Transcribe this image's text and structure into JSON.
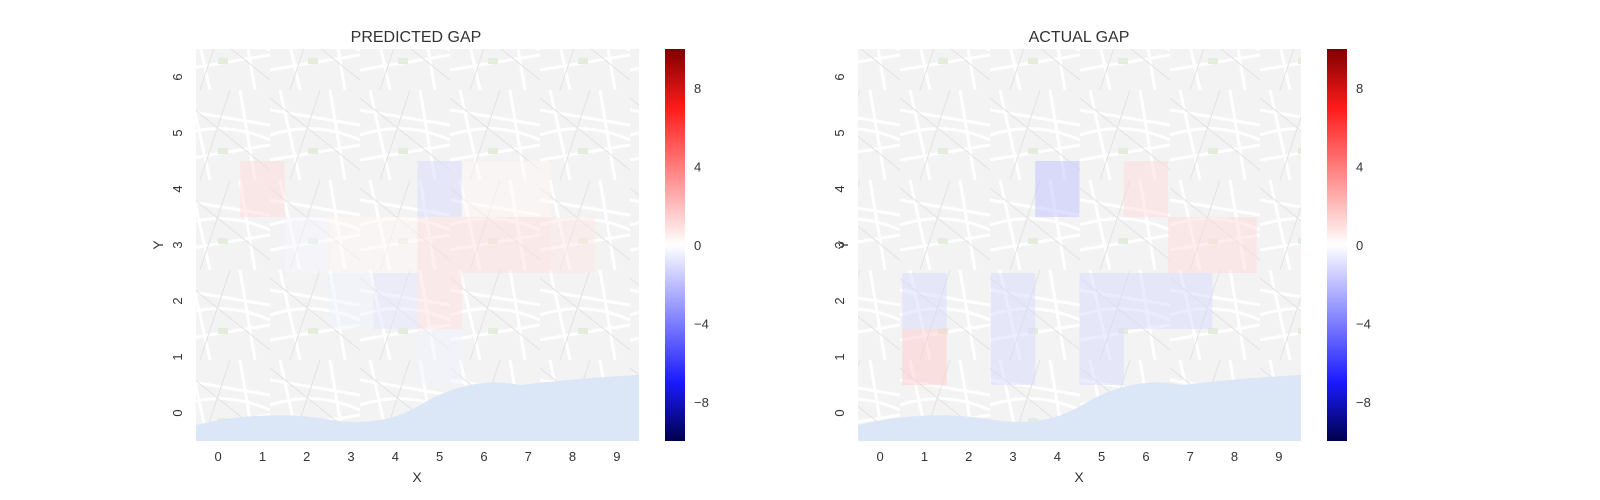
{
  "chart_data": [
    {
      "type": "heatmap",
      "title": "PREDICTED GAP",
      "xlabel": "X",
      "ylabel": "Y",
      "x_ticks": [
        "0",
        "1",
        "2",
        "3",
        "4",
        "5",
        "6",
        "7",
        "8",
        "9"
      ],
      "y_ticks": [
        "0",
        "1",
        "2",
        "3",
        "4",
        "5",
        "6"
      ],
      "xlim": [
        -0.5,
        9.5
      ],
      "ylim": [
        -0.5,
        6.5
      ],
      "background": "street map",
      "colormap": "seismic",
      "clim": [
        -10,
        10
      ],
      "colorbar_ticks": [
        "8",
        "4",
        "0",
        "−4",
        "−8"
      ],
      "cells": [
        {
          "x": 1,
          "y": 4,
          "value": 1.5
        },
        {
          "x": 2,
          "y": 3,
          "value": -0.4
        },
        {
          "x": 3,
          "y": 3,
          "value": 0.3
        },
        {
          "x": 4,
          "y": 3,
          "value": 0.3
        },
        {
          "x": 5,
          "y": 4,
          "value": -1.5
        },
        {
          "x": 5,
          "y": 3,
          "value": 1.2
        },
        {
          "x": 6,
          "y": 3,
          "value": 1.2
        },
        {
          "x": 7,
          "y": 3,
          "value": 1.2
        },
        {
          "x": 8,
          "y": 3,
          "value": 1.0
        },
        {
          "x": 3,
          "y": 2,
          "value": -0.5
        },
        {
          "x": 4,
          "y": 2,
          "value": -1.0
        },
        {
          "x": 5,
          "y": 2,
          "value": 1.2
        },
        {
          "x": 5,
          "y": 1,
          "value": -0.5
        },
        {
          "x": 6,
          "y": 4,
          "value": 0.3
        },
        {
          "x": 7,
          "y": 4,
          "value": 0.3
        }
      ]
    },
    {
      "type": "heatmap",
      "title": "ACTUAL GAP",
      "xlabel": "X",
      "ylabel": "Y",
      "x_ticks": [
        "0",
        "1",
        "2",
        "3",
        "4",
        "5",
        "6",
        "7",
        "8",
        "9"
      ],
      "y_ticks": [
        "0",
        "1",
        "2",
        "3",
        "4",
        "5",
        "6"
      ],
      "xlim": [
        -0.5,
        9.5
      ],
      "ylim": [
        -0.5,
        6.5
      ],
      "background": "street map",
      "colormap": "seismic",
      "clim": [
        -10,
        10
      ],
      "colorbar_ticks": [
        "8",
        "4",
        "0",
        "−4",
        "−8"
      ],
      "cells": [
        {
          "x": 4,
          "y": 4,
          "value": -2.5
        },
        {
          "x": 6,
          "y": 4,
          "value": 1.5
        },
        {
          "x": 7,
          "y": 3,
          "value": 1.5
        },
        {
          "x": 8,
          "y": 3,
          "value": 1.5
        },
        {
          "x": 1,
          "y": 2,
          "value": -1.5
        },
        {
          "x": 1,
          "y": 1,
          "value": 2.0
        },
        {
          "x": 3,
          "y": 2,
          "value": -1.5
        },
        {
          "x": 3,
          "y": 1,
          "value": -1.5
        },
        {
          "x": 5,
          "y": 2,
          "value": -1.5
        },
        {
          "x": 6,
          "y": 2,
          "value": -1.5
        },
        {
          "x": 7,
          "y": 2,
          "value": -1.5
        },
        {
          "x": 5,
          "y": 1,
          "value": -1.5
        }
      ]
    }
  ]
}
